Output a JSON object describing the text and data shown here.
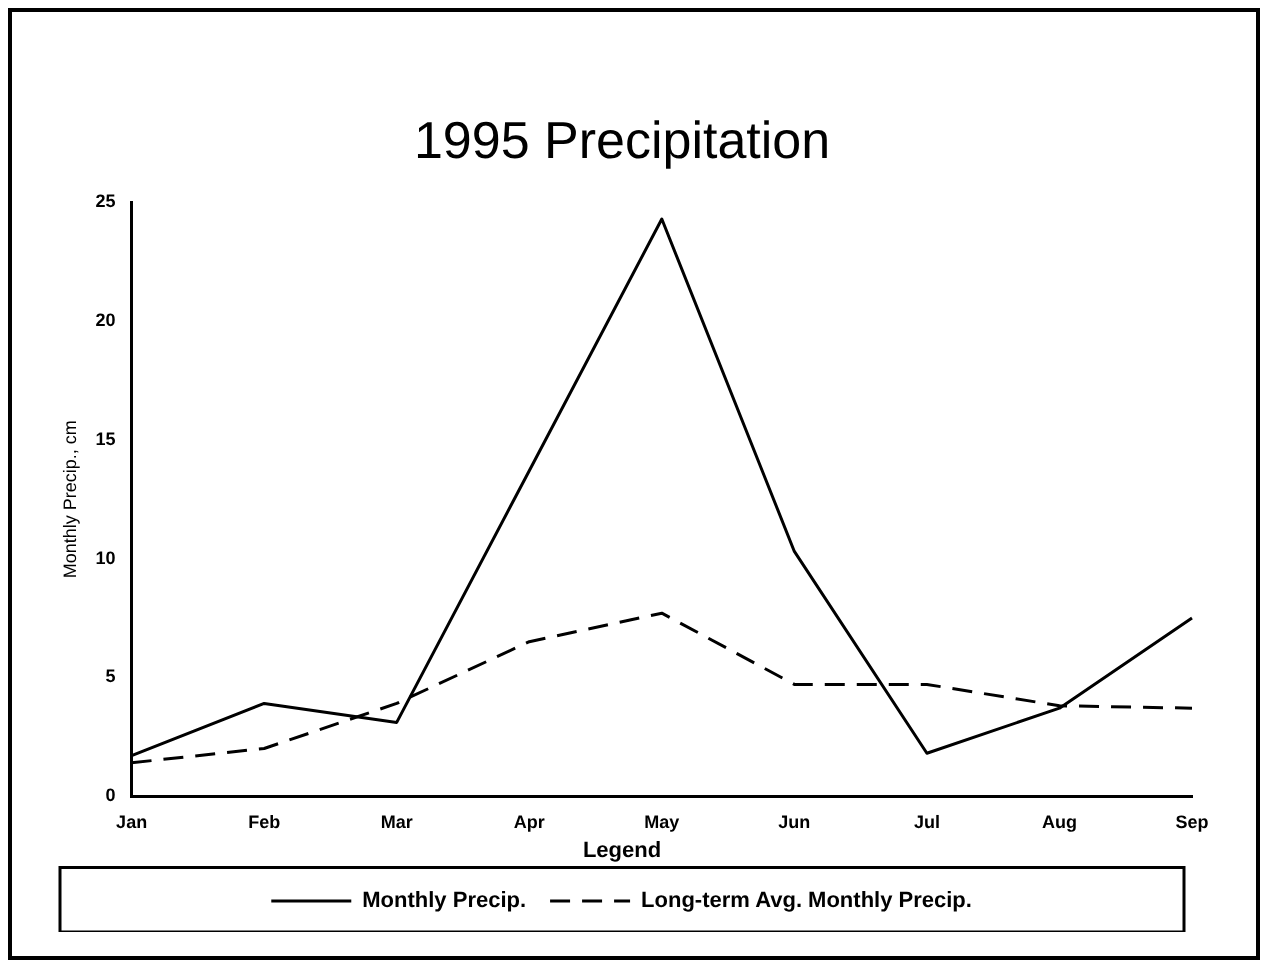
{
  "chart_data": {
    "type": "line",
    "title": "1995 Precipitation",
    "ylabel": "Monthly Precip., cm",
    "legend_title": "Legend",
    "categories": [
      "Jan",
      "Feb",
      "Mar",
      "Apr",
      "May",
      "Jun",
      "Jul",
      "Aug",
      "Sep"
    ],
    "series": [
      {
        "name": "Monthly Precip.",
        "color": "#000000",
        "line_style": "solid",
        "values": [
          1.7,
          3.9,
          3.1,
          13.7,
          24.3,
          10.3,
          1.8,
          3.7,
          7.5
        ]
      },
      {
        "name": "Long-term Avg. Monthly Precip.",
        "color": "#000000",
        "line_style": "dashed",
        "values": [
          1.4,
          2.0,
          3.9,
          6.5,
          7.7,
          4.7,
          4.7,
          3.8,
          3.7
        ]
      }
    ],
    "ylim": [
      0,
      25
    ],
    "yticks": [
      0,
      5,
      10,
      15,
      20,
      25
    ],
    "grid": false,
    "legend": "bottom",
    "marker": "none"
  }
}
